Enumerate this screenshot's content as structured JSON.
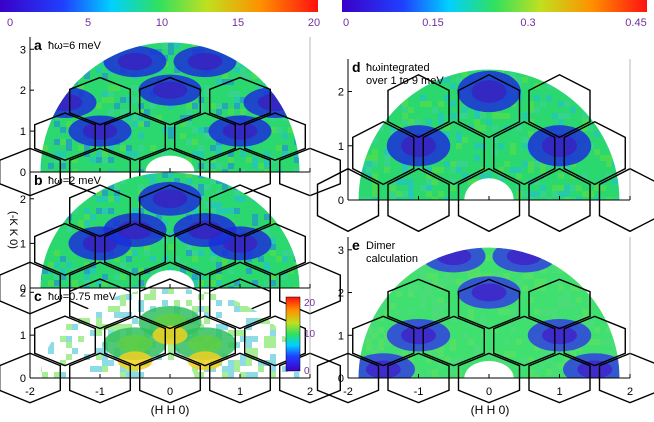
{
  "figure": {
    "left_colorbar": {
      "ticks": [
        "0",
        "5",
        "10",
        "15",
        "20"
      ],
      "label_color": "#7030a0"
    },
    "right_colorbar": {
      "ticks": [
        "0",
        "0.15",
        "0.3",
        "0.45"
      ],
      "label_color": "#7030a0"
    },
    "ylabel_left": "(-K K 0)",
    "xlabel_left": "(H H 0)",
    "xlabel_right": "(H H 0)",
    "panels": [
      {
        "id": "a",
        "letter": "a",
        "label": "ħω=6 meV",
        "yticks": [
          "0",
          "1",
          "2",
          "3"
        ]
      },
      {
        "id": "b",
        "letter": "b",
        "label": "ħω=2 meV",
        "yticks": [
          "0",
          "1",
          "2"
        ]
      },
      {
        "id": "c",
        "letter": "c",
        "label": "ħω=0.75 meV",
        "yticks": [
          "0",
          "1",
          "2"
        ],
        "inset_colorbar": {
          "ticks": [
            "0",
            "10",
            "20"
          ]
        }
      },
      {
        "id": "d",
        "letter": "d",
        "label_line1": "ħωintegrated",
        "label_line2": "over 1 to 9 meV",
        "yticks": [
          "0",
          "1",
          "2"
        ]
      },
      {
        "id": "e",
        "letter": "e",
        "label_line1": "Dimer",
        "label_line2": "calculation",
        "yticks": [
          "0",
          "1",
          "2",
          "3"
        ]
      }
    ],
    "xticks": [
      "-2",
      "-1",
      "0",
      "1",
      "2"
    ],
    "colors": {
      "map_bg": "#2bd870",
      "hot": "#1a2fd8",
      "hexagon": "#000000"
    }
  }
}
